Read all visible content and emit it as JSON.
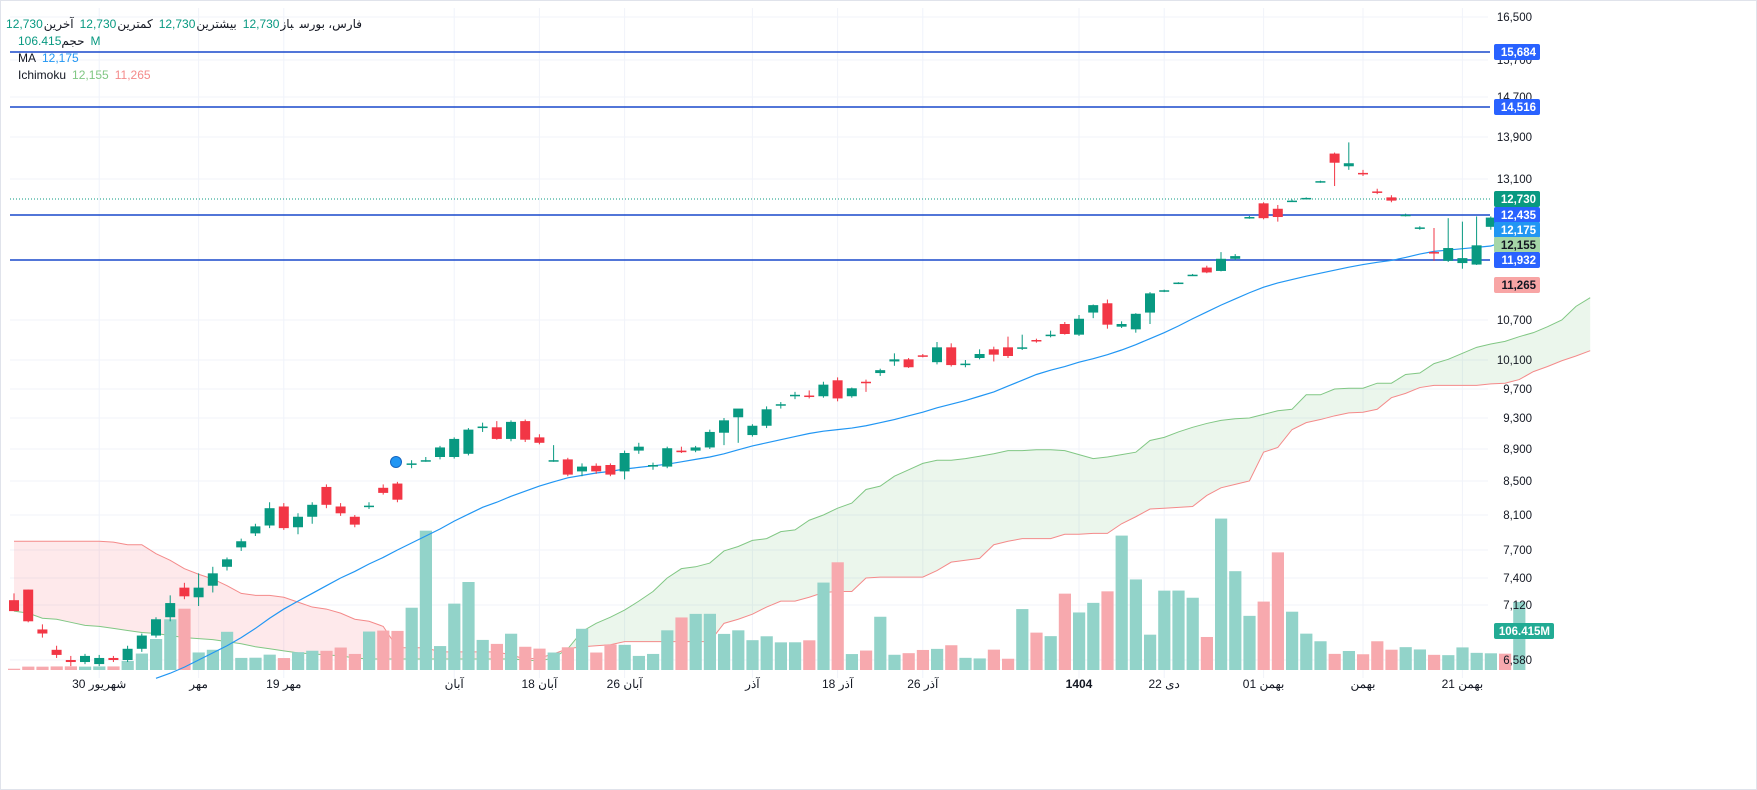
{
  "legend": {
    "symbol": "فارس، بورس",
    "open_label": "باز",
    "open": "12,730",
    "high_label": "بیشترین",
    "high": "12,730",
    "low_label": "کمترین",
    "low": "12,730",
    "close_label": "آخرین",
    "close": "12,730",
    "volume_label": "حجم",
    "volume": "106.415M",
    "ma_label": "MA",
    "ma_value": "12,175",
    "ichimoku_label": "Ichimoku",
    "ichimoku_a": "12,155",
    "ichimoku_b": "11,265"
  },
  "colors": {
    "up": "#089981",
    "down": "#f23645",
    "up_volume": "#92d3c9",
    "down_volume": "#f7a9ae",
    "ma": "#2196f3",
    "span_a": "#81c784",
    "span_b": "#f48a8a",
    "hline": "#1848cc",
    "grid": "#f0f3fa"
  },
  "chart_data": {
    "type": "candlestick",
    "title": "فارس، بورس",
    "y_ticks": [
      16500,
      15700,
      14700,
      13900,
      13100,
      10700,
      10100,
      9700,
      9300,
      8900,
      8500,
      8100,
      7700,
      7400,
      7120,
      6580
    ],
    "y_tick_labels": [
      "16,500",
      "15,700",
      "14,700",
      "13,900",
      "13,100",
      "10,700",
      "10,100",
      "9,700",
      "9,300",
      "8,900",
      "8,500",
      "8,100",
      "7,700",
      "7,400",
      "7,120",
      "6,580"
    ],
    "x_labels": [
      {
        "bar": 6,
        "text": "30 شهریور",
        "bold": false
      },
      {
        "bar": 13,
        "text": "مهر",
        "bold": false
      },
      {
        "bar": 19,
        "text": "19 مهر",
        "bold": false
      },
      {
        "bar": 31,
        "text": "آبان",
        "bold": false
      },
      {
        "bar": 37,
        "text": "18 آبان",
        "bold": false
      },
      {
        "bar": 43,
        "text": "26 آبان",
        "bold": false
      },
      {
        "bar": 52,
        "text": "آذر",
        "bold": false
      },
      {
        "bar": 58,
        "text": "18 آذر",
        "bold": false
      },
      {
        "bar": 64,
        "text": "26 آذر",
        "bold": false
      },
      {
        "bar": 75,
        "text": "1404",
        "bold": true
      },
      {
        "bar": 81,
        "text": "22 دی",
        "bold": false
      },
      {
        "bar": 88,
        "text": "01 بهمن",
        "bold": false
      },
      {
        "bar": 95,
        "text": "بهمن",
        "bold": false
      },
      {
        "bar": 102,
        "text": "21 بهمن",
        "bold": false
      }
    ],
    "horizontal_lines": [
      15684,
      14516,
      12435,
      11932
    ],
    "last_price": 12730,
    "price_badges": [
      {
        "value": 15684,
        "text": "15,684",
        "bg": "#2962ff"
      },
      {
        "value": 14516,
        "text": "14,516",
        "bg": "#2962ff"
      },
      {
        "value": 12730,
        "text": "12,730",
        "bg": "#089981"
      },
      {
        "value": 12435,
        "text": "12,435",
        "bg": "#2962ff"
      },
      {
        "value": 12175,
        "text": "12,175",
        "bg": "#2196f3"
      },
      {
        "value": 12155,
        "text": "12,155",
        "bg": "#a5d6a7"
      },
      {
        "value": 11932,
        "text": "11,932",
        "bg": "#2962ff"
      },
      {
        "value": 11265,
        "text": "11,265",
        "bg": "#f8a5a5"
      }
    ],
    "volume_badge": "106.415M",
    "ohlc": [
      [
        7170,
        7240,
        7060,
        7060
      ],
      [
        7280,
        7280,
        6950,
        6960
      ],
      [
        6880,
        6930,
        6800,
        6840
      ],
      [
        6680,
        6720,
        6600,
        6630
      ],
      [
        6580,
        6620,
        6520,
        6560
      ],
      [
        6560,
        6640,
        6540,
        6620
      ],
      [
        6540,
        6630,
        6520,
        6600
      ],
      [
        6600,
        6620,
        6560,
        6580
      ],
      [
        6580,
        6720,
        6560,
        6690
      ],
      [
        6690,
        6840,
        6660,
        6820
      ],
      [
        6820,
        7000,
        6800,
        6980
      ],
      [
        7000,
        7220,
        6960,
        7140
      ],
      [
        7300,
        7350,
        7180,
        7210
      ],
      [
        7200,
        7450,
        7110,
        7300
      ],
      [
        7320,
        7520,
        7250,
        7450
      ],
      [
        7520,
        7620,
        7480,
        7600
      ],
      [
        7730,
        7830,
        7690,
        7800
      ],
      [
        7890,
        8000,
        7860,
        7970
      ],
      [
        7980,
        8250,
        7950,
        8180
      ],
      [
        8200,
        8240,
        7930,
        7950
      ],
      [
        7960,
        8120,
        7880,
        8080
      ],
      [
        8080,
        8250,
        8000,
        8220
      ],
      [
        8430,
        8460,
        8180,
        8220
      ],
      [
        8200,
        8240,
        8090,
        8120
      ],
      [
        8080,
        8100,
        7960,
        7990
      ],
      [
        8210,
        8250,
        8170,
        8210
      ],
      [
        8420,
        8460,
        8340,
        8360
      ],
      [
        8470,
        8490,
        8250,
        8280
      ],
      [
        8720,
        8760,
        8660,
        8720
      ],
      [
        8760,
        8800,
        8740,
        8760
      ],
      [
        8800,
        8940,
        8770,
        8920
      ],
      [
        8800,
        9050,
        8780,
        9030
      ],
      [
        8840,
        9170,
        8820,
        9150
      ],
      [
        9170,
        9240,
        9120,
        9190
      ],
      [
        9180,
        9260,
        9020,
        9030
      ],
      [
        9030,
        9270,
        9000,
        9250
      ],
      [
        9260,
        9280,
        8990,
        9020
      ],
      [
        9050,
        9090,
        8960,
        8980
      ],
      [
        8760,
        8950,
        8740,
        8760
      ],
      [
        8770,
        8790,
        8560,
        8580
      ],
      [
        8620,
        8720,
        8560,
        8680
      ],
      [
        8690,
        8720,
        8590,
        8620
      ],
      [
        8700,
        8720,
        8560,
        8580
      ],
      [
        8620,
        8880,
        8520,
        8850
      ],
      [
        8880,
        8980,
        8840,
        8930
      ],
      [
        8680,
        8730,
        8640,
        8700
      ],
      [
        8680,
        8930,
        8660,
        8910
      ],
      [
        8880,
        8930,
        8850,
        8860
      ],
      [
        8880,
        8940,
        8860,
        8920
      ],
      [
        8920,
        9150,
        8900,
        9120
      ],
      [
        9110,
        9300,
        8950,
        9270
      ],
      [
        9310,
        9360,
        8980,
        9430
      ],
      [
        9080,
        9220,
        9060,
        9200
      ],
      [
        9200,
        9460,
        9170,
        9420
      ],
      [
        9480,
        9520,
        9430,
        9490
      ],
      [
        9610,
        9660,
        9560,
        9620
      ],
      [
        9610,
        9680,
        9570,
        9600
      ],
      [
        9600,
        9800,
        9580,
        9760
      ],
      [
        9820,
        9860,
        9530,
        9570
      ],
      [
        9600,
        9720,
        9580,
        9710
      ],
      [
        9800,
        9830,
        9660,
        9790
      ],
      [
        9920,
        9980,
        9880,
        9960
      ],
      [
        10080,
        10200,
        10020,
        10110
      ],
      [
        10110,
        10130,
        9990,
        10000
      ],
      [
        10170,
        10190,
        10140,
        10160
      ],
      [
        10070,
        10370,
        10040,
        10290
      ],
      [
        10290,
        10350,
        10010,
        10030
      ],
      [
        10040,
        10100,
        10000,
        10050
      ],
      [
        10130,
        10260,
        10110,
        10190
      ],
      [
        10260,
        10300,
        10080,
        10180
      ],
      [
        10290,
        10450,
        10130,
        10160
      ],
      [
        10270,
        10480,
        10250,
        10290
      ],
      [
        10400,
        10420,
        10360,
        10380
      ],
      [
        10470,
        10540,
        10440,
        10480
      ],
      [
        10640,
        10670,
        10480,
        10490
      ],
      [
        10480,
        10780,
        10460,
        10720
      ],
      [
        10820,
        10950,
        10730,
        10940
      ],
      [
        10970,
        11030,
        10570,
        10630
      ],
      [
        10600,
        10680,
        10580,
        10640
      ],
      [
        10560,
        10810,
        10510,
        10800
      ],
      [
        10820,
        11150,
        10640,
        11130
      ],
      [
        11170,
        11190,
        11150,
        11180
      ],
      [
        11310,
        11340,
        11290,
        11330
      ],
      [
        11530,
        11560,
        11510,
        11540
      ],
      [
        11730,
        11780,
        11580,
        11600
      ],
      [
        11640,
        12050,
        11630,
        11950
      ],
      [
        11950,
        12020,
        11920,
        11990
      ],
      [
        12380,
        12420,
        12370,
        12400
      ],
      [
        12650,
        12670,
        12360,
        12380
      ],
      [
        12550,
        12620,
        12320,
        12400
      ],
      [
        12700,
        12720,
        12680,
        12700
      ],
      [
        12740,
        12760,
        12730,
        12750
      ],
      [
        13050,
        13070,
        13030,
        13060
      ],
      [
        13600,
        13620,
        12970,
        13420
      ],
      [
        13350,
        13820,
        13280,
        13410
      ],
      [
        13220,
        13280,
        13160,
        13200
      ],
      [
        12870,
        12920,
        12820,
        12860
      ],
      [
        12760,
        12800,
        12670,
        12700
      ],
      [
        12430,
        12460,
        12410,
        12440
      ],
      [
        12200,
        12240,
        12180,
        12220
      ],
      [
        12050,
        12210,
        11910,
        12030
      ],
      [
        11910,
        12380,
        11880,
        12110
      ],
      [
        11850,
        12320,
        11700,
        11960
      ],
      [
        11810,
        12410,
        11800,
        12150
      ],
      [
        12230,
        12410,
        12180,
        12390
      ],
      [
        12730,
        12750,
        12160,
        12440
      ],
      [
        12730,
        12730,
        12730,
        12730
      ]
    ],
    "volumes": [
      2.0,
      5.3,
      5.2,
      5.6,
      5.7,
      5.3,
      5.6,
      5.6,
      14.2,
      25.7,
      48.4,
      79.2,
      95.8,
      27.4,
      31.6,
      59.7,
      18.9,
      19.2,
      24.0,
      18.7,
      27.9,
      30.1,
      30.0,
      35.1,
      25.1,
      60.1,
      61.6,
      61.1,
      97.3,
      217.7,
      37.4,
      103.7,
      137.5,
      47.0,
      40.8,
      56.7,
      36.3,
      33.4,
      27.3,
      35.5,
      64.4,
      27.3,
      40.0,
      39.3,
      22.0,
      25.1,
      62.0,
      82.1,
      87.7,
      87.8,
      56.4,
      62.0,
      46.6,
      52.7,
      43.2,
      43.3,
      46.4,
      136.6,
      168.3,
      24.9,
      30.4,
      83.2,
      23.8,
      26.3,
      31.3,
      33.0,
      38.7,
      19.0,
      18.1,
      31.8,
      17.6,
      95.2,
      58.4,
      52.9,
      119.3,
      89.9,
      104.9,
      122.9,
      210.0,
      141.5,
      55.2,
      124.0,
      124.1,
      112.9,
      51.6,
      236.6,
      154.4,
      84.6,
      106.9,
      183.8,
      91.1,
      56.8,
      44.9,
      25.2,
      29.7,
      24.6,
      44.9,
      31.7,
      35.7,
      32.1,
      23.7,
      23.2,
      35.3,
      26.8,
      26.1,
      25.5,
      106.4
    ],
    "ma": [
      null,
      null,
      null,
      null,
      null,
      null,
      null,
      null,
      null,
      null,
      6400,
      6450,
      6510,
      6580,
      6650,
      6720,
      6800,
      6890,
      6990,
      7080,
      7160,
      7240,
      7320,
      7400,
      7470,
      7550,
      7620,
      7700,
      7780,
      7860,
      7940,
      8030,
      8110,
      8190,
      8250,
      8320,
      8380,
      8440,
      8490,
      8540,
      8570,
      8600,
      8620,
      8650,
      8670,
      8690,
      8710,
      8740,
      8770,
      8800,
      8840,
      8890,
      8940,
      8980,
      9020,
      9060,
      9100,
      9130,
      9150,
      9170,
      9200,
      9240,
      9280,
      9330,
      9380,
      9440,
      9490,
      9540,
      9600,
      9660,
      9740,
      9820,
      9900,
      9960,
      10010,
      10070,
      10120,
      10180,
      10250,
      10330,
      10420,
      10510,
      10610,
      10720,
      10830,
      10940,
      11040,
      11140,
      11230,
      11320,
      11410,
      11500,
      11580,
      11660,
      11740,
      11810,
      11870,
      11920,
      11970,
      12020,
      12060,
      12080,
      12100,
      12120,
      12140,
      12160,
      12175
    ],
    "ichimoku_span_a": [
      7060,
      7040,
      6990,
      6980,
      6950,
      6920,
      6910,
      6890,
      6870,
      6850,
      6840,
      6820,
      6800,
      6790,
      6780,
      6760,
      6740,
      6710,
      6690,
      6670,
      6650,
      6640,
      6630,
      6620,
      6600,
      6590,
      6590,
      6590,
      6590,
      6590,
      6590,
      6590,
      6590,
      6590,
      6590,
      6590,
      6580,
      6570,
      6600,
      6690,
      6860,
      6940,
      7000,
      7070,
      7160,
      7260,
      7400,
      7500,
      7520,
      7560,
      7690,
      7740,
      7810,
      7830,
      7910,
      7930,
      8040,
      8100,
      8180,
      8240,
      8400,
      8440,
      8560,
      8640,
      8720,
      8760,
      8760,
      8780,
      8810,
      8840,
      8880,
      8880,
      8890,
      8890,
      8880,
      8830,
      8780,
      8800,
      8830,
      8860,
      9010,
      9050,
      9120,
      9180,
      9230,
      9270,
      9290,
      9300,
      9350,
      9400,
      9420,
      9620,
      9620,
      9700,
      9710,
      9710,
      9780,
      9780,
      9900,
      9920,
      10050,
      10110,
      10200,
      10290,
      10340,
      10380,
      10450,
      10510,
      10600,
      10700,
      10920,
      11060
    ],
    "ichimoku_span_b": [
      7800,
      7800,
      7800,
      7800,
      7800,
      7800,
      7800,
      7790,
      7760,
      7760,
      7660,
      7590,
      7500,
      7440,
      7390,
      7320,
      7240,
      7220,
      7220,
      7200,
      7150,
      7100,
      7080,
      7040,
      6980,
      6960,
      6910,
      6700,
      6700,
      6700,
      6660,
      6660,
      6660,
      6660,
      6660,
      6630,
      6590,
      6600,
      6640,
      6690,
      6710,
      6720,
      6730,
      6760,
      6760,
      6760,
      6760,
      6760,
      6760,
      6760,
      6940,
      6980,
      7030,
      7100,
      7160,
      7160,
      7200,
      7250,
      7260,
      7260,
      7400,
      7410,
      7410,
      7410,
      7410,
      7480,
      7570,
      7590,
      7610,
      7760,
      7800,
      7830,
      7830,
      7830,
      7880,
      7880,
      7890,
      7890,
      8000,
      8080,
      8170,
      8180,
      8190,
      8200,
      8330,
      8420,
      8460,
      8500,
      8860,
      8920,
      9150,
      9240,
      9280,
      9330,
      9370,
      9380,
      9420,
      9580,
      9640,
      9720,
      9750,
      9750,
      9750,
      9750,
      9770,
      9780,
      9830,
      9940,
      10010,
      10090,
      10160,
      10240
    ]
  }
}
